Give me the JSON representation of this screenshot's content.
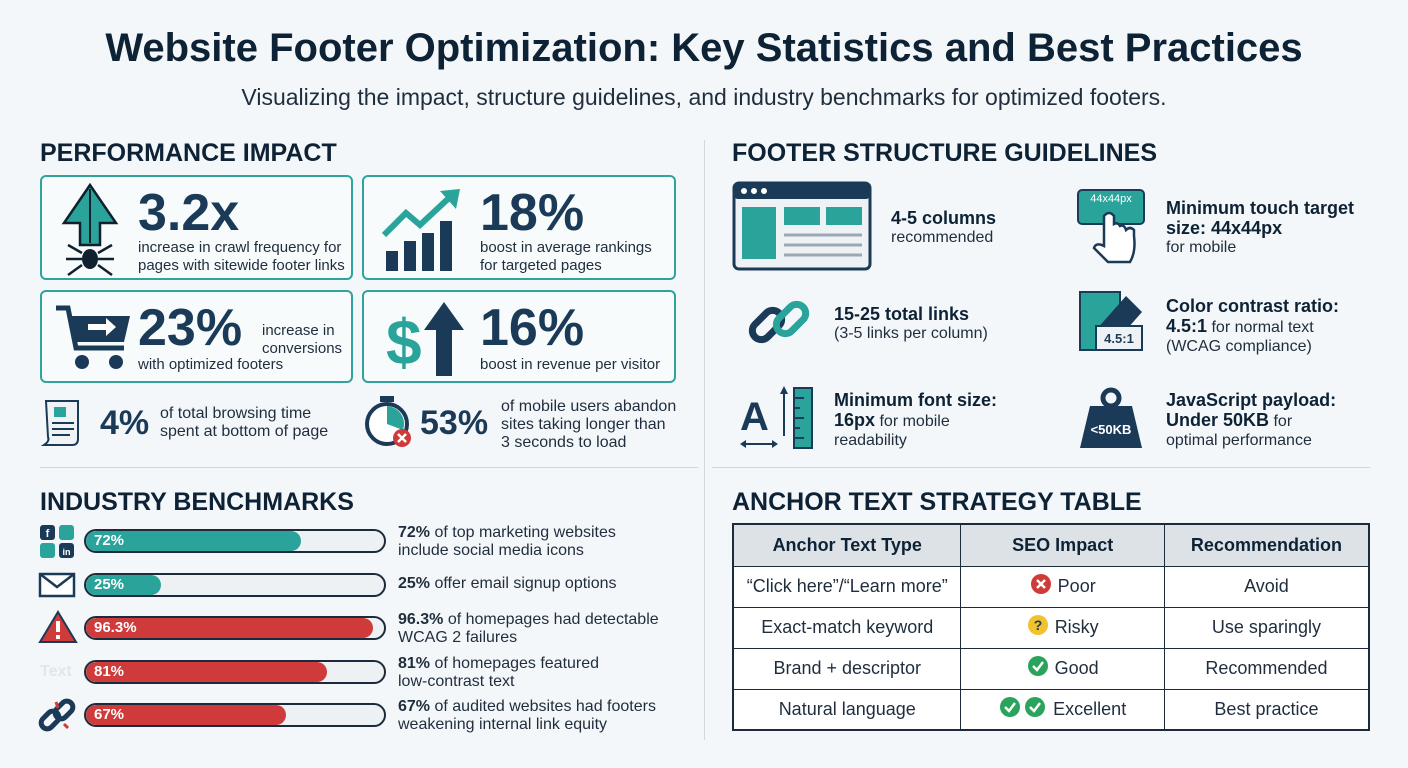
{
  "title": "Website Footer Optimization: Key Statistics and Best Practices",
  "subtitle": "Visualizing the impact, structure guidelines, and industry benchmarks for optimized footers.",
  "performance": {
    "heading": "PERFORMANCE IMPACT",
    "cards": [
      {
        "value": "3.2x",
        "text1": "increase in crawl frequency for",
        "text2": "pages with sitewide footer links",
        "icon": "spider-arrow-icon"
      },
      {
        "value": "18%",
        "text1": "boost in average rankings",
        "text2": "for targeted pages",
        "icon": "rising-chart-icon"
      },
      {
        "value": "23%",
        "text1": "increase in",
        "text2": "conversions",
        "text3": "with optimized footers",
        "icon": "cart-icon"
      },
      {
        "value": "16%",
        "text1": "boost in revenue per visitor",
        "icon": "dollar-arrow-icon"
      }
    ],
    "small": [
      {
        "value": "4%",
        "text1": "of total browsing time",
        "text2": "spent at bottom of page",
        "icon": "scroll-page-icon"
      },
      {
        "value": "53%",
        "text1": "of mobile users abandon",
        "text2": "sites taking longer than",
        "text3": "3 seconds to load",
        "icon": "stopwatch-icon"
      }
    ]
  },
  "structure": {
    "heading": "FOOTER STRUCTURE GUIDELINES",
    "items": [
      {
        "bold": "4-5 columns",
        "rest": "recommended",
        "icon": "columns-layout-icon"
      },
      {
        "bold": "Minimum touch target size: 44x44px",
        "rest": "for mobile",
        "icon": "touch-target-icon",
        "badge": "44x44px"
      },
      {
        "bold": "15-25 total links",
        "rest": "(3-5 links per column)",
        "icon": "link-icon"
      },
      {
        "bold": "Color contrast ratio:",
        "bold2": "4.5:1",
        "rest": "for normal text",
        "rest2": "(WCAG compliance)",
        "icon": "contrast-icon",
        "badge": "4.5:1"
      },
      {
        "bold": "Minimum font size:",
        "bold2": "16px",
        "rest": "for mobile",
        "rest2": "readability",
        "icon": "font-size-icon"
      },
      {
        "bold": "JavaScript payload:",
        "bold2": "Under 50KB",
        "rest": "for",
        "rest2": "optimal performance",
        "icon": "weight-icon",
        "badge": "<50KB"
      }
    ]
  },
  "benchmarks": {
    "heading": "INDUSTRY BENCHMARKS",
    "icon_text": "Text",
    "rows": [
      {
        "pct": 72,
        "label": "72%",
        "bold": "72%",
        "text": "of top marketing websites",
        "text2": "include social media icons",
        "color": "#2aa39b",
        "icon": "social-media-icons"
      },
      {
        "pct": 25,
        "label": "25%",
        "bold": "25%",
        "text": "offer email signup options",
        "text2": "",
        "color": "#2aa39b",
        "icon": "envelope-icon"
      },
      {
        "pct": 96.3,
        "label": "96.3%",
        "bold": "96.3%",
        "text": "of homepages had detectable",
        "text2": "WCAG 2 failures",
        "color": "#cf3a3a",
        "icon": "warning-icon"
      },
      {
        "pct": 81,
        "label": "81%",
        "bold": "81%",
        "text": "of homepages featured",
        "text2": "low-contrast text",
        "color": "#cf3a3a",
        "icon": "low-contrast-text-icon"
      },
      {
        "pct": 67,
        "label": "67%",
        "bold": "67%",
        "text": "of audited websites had footers",
        "text2": "weakening internal link equity",
        "color": "#cf3a3a",
        "icon": "broken-link-icon"
      }
    ]
  },
  "anchor_table": {
    "heading": "ANCHOR TEXT STRATEGY TABLE",
    "headers": [
      "Anchor Text Type",
      "SEO Impact",
      "Recommendation"
    ],
    "rows": [
      {
        "type": "“Click here”/“Learn more”",
        "impact": "Poor",
        "rec": "Avoid",
        "icon": "x-circle-icon"
      },
      {
        "type": "Exact-match keyword",
        "impact": "Risky",
        "rec": "Use sparingly",
        "icon": "question-circle-icon"
      },
      {
        "type": "Brand + descriptor",
        "impact": "Good",
        "rec": "Recommended",
        "icon": "check-circle-icon"
      },
      {
        "type": "Natural language",
        "impact": "Excellent",
        "rec": "Best practice",
        "icon": "double-check-icon"
      }
    ]
  },
  "colors": {
    "teal": "#2aa39b",
    "red": "#cf3a3a",
    "navy": "#1b3a57"
  }
}
